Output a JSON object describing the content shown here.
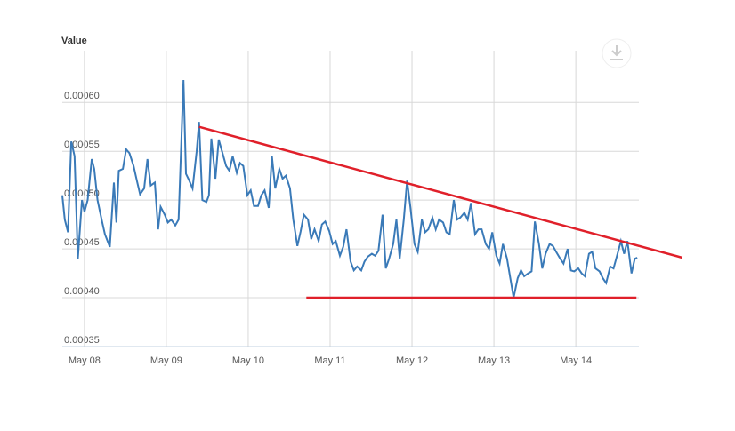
{
  "chart_data": {
    "type": "line",
    "y_label": "Value",
    "color": "#3a7ab8",
    "grid": true,
    "xlim": [
      -0.27,
      6.77
    ],
    "xticks": [
      {
        "value": 0,
        "label": "May 08"
      },
      {
        "value": 1,
        "label": "May 09"
      },
      {
        "value": 2,
        "label": "May 10"
      },
      {
        "value": 3,
        "label": "May 11"
      },
      {
        "value": 4,
        "label": "May 12"
      },
      {
        "value": 5,
        "label": "May 13"
      },
      {
        "value": 6,
        "label": "May 14"
      }
    ],
    "ylim": [
      0.00035,
      0.000653
    ],
    "yticks": [
      0.00035,
      {
        "value": 0.0004,
        "label": "0.00040"
      },
      0.00045,
      {
        "value": 0.0005,
        "label": "0.00050"
      },
      0.00055,
      {
        "value": 0.0006,
        "label": "0.00060"
      }
    ],
    "x": [
      -0.27,
      -0.24,
      -0.2,
      -0.16,
      -0.12,
      -0.08,
      -0.03,
      0,
      0.04,
      0.09,
      0.12,
      0.16,
      0.21,
      0.25,
      0.31,
      0.36,
      0.39,
      0.42,
      0.47,
      0.51,
      0.55,
      0.6,
      0.64,
      0.68,
      0.73,
      0.77,
      0.81,
      0.86,
      0.9,
      0.93,
      0.98,
      1.02,
      1.06,
      1.11,
      1.15,
      1.21,
      1.24,
      1.28,
      1.32,
      1.37,
      1.4,
      1.44,
      1.49,
      1.52,
      1.55,
      1.6,
      1.64,
      1.68,
      1.73,
      1.77,
      1.81,
      1.86,
      1.9,
      1.94,
      1.99,
      2.03,
      2.07,
      2.12,
      2.16,
      2.2,
      2.25,
      2.29,
      2.33,
      2.38,
      2.42,
      2.46,
      2.51,
      2.55,
      2.6,
      2.64,
      2.68,
      2.73,
      2.77,
      2.81,
      2.86,
      2.9,
      2.94,
      2.99,
      3.03,
      3.07,
      3.12,
      3.16,
      3.2,
      3.25,
      3.29,
      3.33,
      3.38,
      3.42,
      3.46,
      3.51,
      3.55,
      3.59,
      3.64,
      3.68,
      3.72,
      3.77,
      3.81,
      3.85,
      3.9,
      3.94,
      3.98,
      4.03,
      4.07,
      4.12,
      4.16,
      4.2,
      4.25,
      4.29,
      4.33,
      4.38,
      4.42,
      4.46,
      4.51,
      4.55,
      4.59,
      4.64,
      4.68,
      4.72,
      4.77,
      4.81,
      4.85,
      4.9,
      4.94,
      4.98,
      5.03,
      5.07,
      5.11,
      5.16,
      5.2,
      5.24,
      5.29,
      5.33,
      5.37,
      5.42,
      5.46,
      5.5,
      5.55,
      5.59,
      5.63,
      5.68,
      5.72,
      5.76,
      5.81,
      5.85,
      5.9,
      5.94,
      5.98,
      6.03,
      6.07,
      6.11,
      6.16,
      6.2,
      6.24,
      6.29,
      6.33,
      6.37,
      6.42,
      6.46,
      6.5,
      6.55,
      6.59,
      6.63,
      6.68,
      6.72,
      6.75
    ],
    "values": [
      0.000505,
      0.00048,
      0.000467,
      0.00056,
      0.000545,
      0.00044,
      0.0005,
      0.000488,
      0.0005,
      0.000542,
      0.000532,
      0.0005,
      0.00048,
      0.000465,
      0.000452,
      0.000518,
      0.000477,
      0.00053,
      0.000532,
      0.000552,
      0.000548,
      0.000535,
      0.00052,
      0.000506,
      0.000512,
      0.000542,
      0.000515,
      0.000518,
      0.00047,
      0.000493,
      0.000485,
      0.000477,
      0.00048,
      0.000474,
      0.00048,
      0.000623,
      0.000527,
      0.00052,
      0.000512,
      0.00055,
      0.00058,
      0.0005,
      0.000498,
      0.000505,
      0.000563,
      0.000522,
      0.000562,
      0.00055,
      0.000535,
      0.00053,
      0.000545,
      0.000528,
      0.000538,
      0.000535,
      0.000505,
      0.00051,
      0.000494,
      0.000494,
      0.000505,
      0.00051,
      0.000492,
      0.000545,
      0.000512,
      0.000532,
      0.000522,
      0.000525,
      0.000512,
      0.00048,
      0.000453,
      0.000468,
      0.000485,
      0.00048,
      0.00046,
      0.00047,
      0.000458,
      0.000475,
      0.000478,
      0.000468,
      0.000455,
      0.000458,
      0.000443,
      0.000452,
      0.00047,
      0.000437,
      0.000428,
      0.000432,
      0.000428,
      0.000437,
      0.000442,
      0.000445,
      0.000443,
      0.000448,
      0.000485,
      0.00043,
      0.00044,
      0.000455,
      0.00048,
      0.00044,
      0.00048,
      0.00052,
      0.000493,
      0.000455,
      0.000447,
      0.00048,
      0.000467,
      0.00047,
      0.000482,
      0.00047,
      0.00048,
      0.000477,
      0.000467,
      0.000465,
      0.0005,
      0.00048,
      0.000482,
      0.000487,
      0.00048,
      0.000497,
      0.000465,
      0.00047,
      0.00047,
      0.000455,
      0.00045,
      0.000467,
      0.000443,
      0.000435,
      0.000455,
      0.00044,
      0.00042,
      0.0004,
      0.00042,
      0.000428,
      0.000422,
      0.000425,
      0.000427,
      0.000478,
      0.000455,
      0.00043,
      0.000445,
      0.000455,
      0.000453,
      0.000447,
      0.00044,
      0.000435,
      0.00045,
      0.000428,
      0.000427,
      0.00043,
      0.000425,
      0.000422,
      0.000445,
      0.000447,
      0.00043,
      0.000427,
      0.00042,
      0.000415,
      0.000432,
      0.00043,
      0.000442,
      0.000458,
      0.000445,
      0.000458,
      0.000425,
      0.00044,
      0.000441
    ],
    "annotations": [
      {
        "x": [
          1.4,
          7.3
        ],
        "y": [
          0.000575,
          0.000441
        ],
        "color": "#e0202a"
      },
      {
        "x": [
          2.71,
          6.74
        ],
        "y": [
          0.0004,
          0.0004
        ],
        "color": "#e0202a"
      }
    ]
  }
}
